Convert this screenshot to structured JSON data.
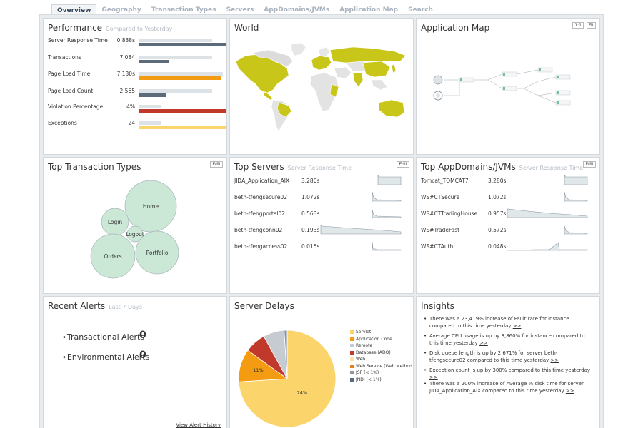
{
  "tabs": [
    "Overview",
    "Geography",
    "Transaction Types",
    "Servers",
    "AppDomains/JVMs",
    "Application Map",
    "Search"
  ],
  "performance": {
    "title": "Performance",
    "subtitle": "Compared to Yesterday",
    "rows": [
      {
        "label": "Server Response Time",
        "value": "0.838s",
        "prev": 0.82,
        "cur": 1.0,
        "color": "#5c6b79"
      },
      {
        "label": "Transactions",
        "value": "7,084",
        "prev": 0.82,
        "cur": 0.33,
        "color": "#5c6b79"
      },
      {
        "label": "Page Load Time",
        "value": "7.130s",
        "prev": 0.94,
        "cur": 0.93,
        "color": "#f39c12"
      },
      {
        "label": "Page Load Count",
        "value": "2,565",
        "prev": 0.82,
        "cur": 0.31,
        "color": "#5c6b79"
      },
      {
        "label": "Violation Percentage",
        "value": "4%",
        "prev": 0.25,
        "cur": 1.0,
        "color": "#c0392b"
      },
      {
        "label": "Exceptions",
        "value": "24",
        "prev": 0.25,
        "cur": 1.0,
        "color": "#fbd56b"
      }
    ]
  },
  "world": {
    "title": "World"
  },
  "appmap": {
    "title": "Application Map",
    "btn_fit": "1:1",
    "btn_fill": "Fit"
  },
  "top_tx": {
    "title": "Top Transaction Types",
    "edit": "Edit",
    "bubbles": [
      {
        "label": "Home",
        "r": 36
      },
      {
        "label": "Login",
        "r": 19
      },
      {
        "label": "Logout",
        "r": 11
      },
      {
        "label": "Orders",
        "r": 31
      },
      {
        "label": "Portfolio",
        "r": 30
      }
    ]
  },
  "top_servers": {
    "title": "Top Servers",
    "subtitle": "Server Response Time",
    "edit": "Edit",
    "rows": [
      {
        "name": "JIDA_Application_AIX",
        "value": "3.280s"
      },
      {
        "name": "beth-tfengsecure02",
        "value": "1.072s"
      },
      {
        "name": "beth-tfengportal02",
        "value": "0.563s"
      },
      {
        "name": "beth-tfengconn02",
        "value": "0.193s"
      },
      {
        "name": "beth-tfengaccess02",
        "value": "0.015s"
      }
    ]
  },
  "top_appdomains": {
    "title": "Top AppDomains/JVMs",
    "subtitle": "Server Response Time",
    "edit": "Edit",
    "rows": [
      {
        "name": "Tomcat_TOMCAT7",
        "value": "3.280s"
      },
      {
        "name": "WS#CTSecure",
        "value": "1.072s"
      },
      {
        "name": "WS#CTTradingHouse",
        "value": "0.957s"
      },
      {
        "name": "WS#TradeFast",
        "value": "0.572s"
      },
      {
        "name": "WS#CTAuth",
        "value": "0.048s"
      }
    ]
  },
  "alerts": {
    "title": "Recent Alerts",
    "subtitle": "Last 7 Days",
    "items": [
      {
        "label": "Transactional Alerts",
        "count": "0"
      },
      {
        "label": "Environmental Alerts",
        "count": "0"
      }
    ],
    "link": "View Alert History"
  },
  "delays": {
    "title": "Server Delays",
    "legend": [
      {
        "label": "Servlet",
        "color": "#fbd56b"
      },
      {
        "label": "Application Code",
        "color": "#f39c12"
      },
      {
        "label": "Remote",
        "color": "#c5cbd1"
      },
      {
        "label": "Database (ADO)",
        "color": "#c0392b"
      },
      {
        "label": "Web",
        "color": "#fde3a0"
      },
      {
        "label": "Web Service (Web Method (",
        "color": "#e67e22"
      },
      {
        "label": "JSP (< 1%)",
        "color": "#8a96a3"
      },
      {
        "label": "JNDI (< 1%)",
        "color": "#5c6b79"
      }
    ],
    "slices": [
      {
        "name": "Servlet",
        "value": 74,
        "color": "#fbd56b",
        "label": "74%"
      },
      {
        "name": "Application Code",
        "value": 11,
        "color": "#f39c12",
        "label": "11%"
      },
      {
        "name": "Database (ADO)",
        "value": 7,
        "color": "#c0392b",
        "label": ""
      },
      {
        "name": "Remote",
        "value": 7,
        "color": "#c5cbd1",
        "label": ""
      },
      {
        "name": "JSP (< 1%)",
        "value": 1,
        "color": "#8a96a3",
        "label": ""
      }
    ]
  },
  "insights": {
    "title": "Insights",
    "items": [
      {
        "text": "There was a 23,419% increase of Fault rate for instance compared to this time yesterday",
        "link": ">>"
      },
      {
        "text": "Average CPU usage is up by 8,860% for instance compared to this time yesterday",
        "link": ">>"
      },
      {
        "text": "Disk queue length is up by 2,671% for server beth-tfengsecure02 compared to this time yesterday",
        "link": ">>"
      },
      {
        "text": "Exception count is up by 300% compared to this time yesterday",
        "link": ">>"
      },
      {
        "text": "There was a 200% increase of Average % disk time for server JIDA_Application_AIX compared to this time yesterday",
        "link": ">>"
      }
    ]
  }
}
